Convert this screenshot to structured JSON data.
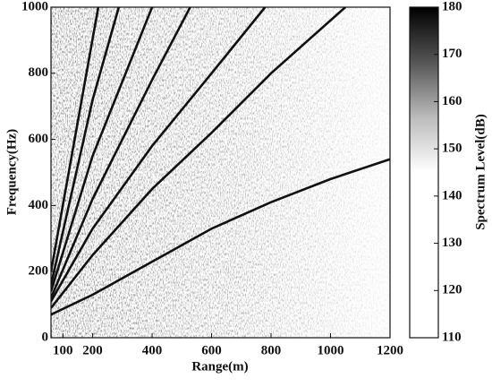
{
  "chart_data": {
    "type": "spectrogram",
    "xlabel": "Range(m)",
    "ylabel": "Frequency(Hz)",
    "xlim": [
      60,
      1200
    ],
    "xticks": [
      100,
      200,
      400,
      600,
      800,
      1000,
      1200
    ],
    "ylim": [
      0,
      1000
    ],
    "yticks": [
      0,
      200,
      400,
      600,
      800,
      1000
    ],
    "line_color": "#111111",
    "series": [
      {
        "x": [
          60,
          200,
          400,
          600,
          800,
          1000,
          1200
        ],
        "values": [
          70,
          130,
          230,
          330,
          410,
          480,
          540
        ]
      },
      {
        "x": [
          60,
          200,
          400,
          600,
          800,
          1050
        ],
        "values": [
          90,
          250,
          450,
          620,
          800,
          1000
        ]
      },
      {
        "x": [
          60,
          200,
          400,
          600,
          780
        ],
        "values": [
          110,
          330,
          580,
          800,
          1000
        ]
      },
      {
        "x": [
          60,
          200,
          400,
          528
        ],
        "values": [
          120,
          420,
          780,
          1000
        ]
      },
      {
        "x": [
          60,
          200,
          400
        ],
        "values": [
          140,
          550,
          1000
        ]
      },
      {
        "x": [
          60,
          200,
          288
        ],
        "values": [
          160,
          720,
          1000
        ]
      },
      {
        "x": [
          60,
          219
        ],
        "values": [
          200,
          1000
        ]
      }
    ],
    "colorbar": {
      "label": "Spectrum Level(dB)",
      "lim": [
        110,
        180
      ],
      "ticks": [
        110,
        120,
        130,
        140,
        150,
        160,
        170,
        180
      ],
      "colormap": [
        "#ffffff",
        "#ffffff",
        "#ffffff",
        "#ffffff",
        "#bbbbbb",
        "#555555",
        "#000000"
      ]
    }
  }
}
